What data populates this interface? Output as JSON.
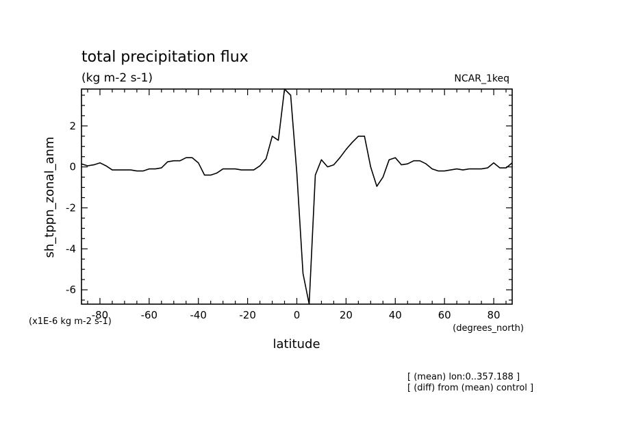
{
  "chart_data": {
    "type": "line",
    "title": "total precipitation flux",
    "subtitle": "(kg m-2 s-1)",
    "model_label": "NCAR_1keq",
    "xlabel": "latitude",
    "x_unit_label": "(degrees_north)",
    "ylabel": "sh_tppn_zonal_anm",
    "y_scale_label": "(x1E-6 kg m-2 s-1)",
    "notes": [
      "[ (mean) lon:0..357.188 ]",
      "[ (diff) from (mean) control ]"
    ],
    "xlim": [
      -87.5,
      87.5
    ],
    "ylim": [
      -6.7,
      3.8
    ],
    "x_ticks": [
      -80,
      -60,
      -40,
      -20,
      0,
      20,
      40,
      60,
      80
    ],
    "x_tick_labels": [
      "-80",
      "-60",
      "-40",
      "-20",
      "0",
      "20",
      "40",
      "60",
      "80"
    ],
    "y_ticks": [
      2,
      0,
      -2,
      -4,
      -6
    ],
    "y_tick_labels": [
      "2",
      "0",
      "-2",
      "-4",
      "-6"
    ],
    "grid": false,
    "line_color": "#000000",
    "series": [
      {
        "x": [
          -87.5,
          -85,
          -82.5,
          -80,
          -77.5,
          -75,
          -72.5,
          -70,
          -67.5,
          -65,
          -62.5,
          -60,
          -57.5,
          -55,
          -52.5,
          -50,
          -47.5,
          -45,
          -42.5,
          -40,
          -37.5,
          -35,
          -32.5,
          -30,
          -27.5,
          -25,
          -22.5,
          -20,
          -17.5,
          -15,
          -12.5,
          -10,
          -7.5,
          -5,
          -2.5,
          0,
          2.5,
          5,
          7.5,
          10,
          12.5,
          15,
          17.5,
          20,
          22.5,
          25,
          27.5,
          30,
          32.5,
          35,
          37.5,
          40,
          42.5,
          45,
          47.5,
          50,
          52.5,
          55,
          57.5,
          60,
          62.5,
          65,
          67.5,
          70,
          72.5,
          75,
          77.5,
          80,
          82.5,
          85,
          87.5
        ],
        "y": [
          0.15,
          0.05,
          0.1,
          0.2,
          0.05,
          -0.15,
          -0.15,
          -0.15,
          -0.15,
          -0.2,
          -0.2,
          -0.1,
          -0.1,
          -0.05,
          0.25,
          0.3,
          0.3,
          0.45,
          0.45,
          0.2,
          -0.4,
          -0.4,
          -0.3,
          -0.1,
          -0.1,
          -0.1,
          -0.15,
          -0.15,
          -0.15,
          0.05,
          0.4,
          1.5,
          1.3,
          3.8,
          3.5,
          -0.3,
          -5.2,
          -6.7,
          -0.4,
          0.35,
          0.0,
          0.1,
          0.45,
          0.85,
          1.2,
          1.5,
          1.5,
          0.0,
          -0.95,
          -0.5,
          0.35,
          0.45,
          0.1,
          0.15,
          0.3,
          0.3,
          0.15,
          -0.1,
          -0.2,
          -0.2,
          -0.15,
          -0.1,
          -0.15,
          -0.1,
          -0.1,
          -0.1,
          -0.05,
          0.2,
          -0.05,
          -0.05,
          0.2
        ]
      }
    ]
  }
}
